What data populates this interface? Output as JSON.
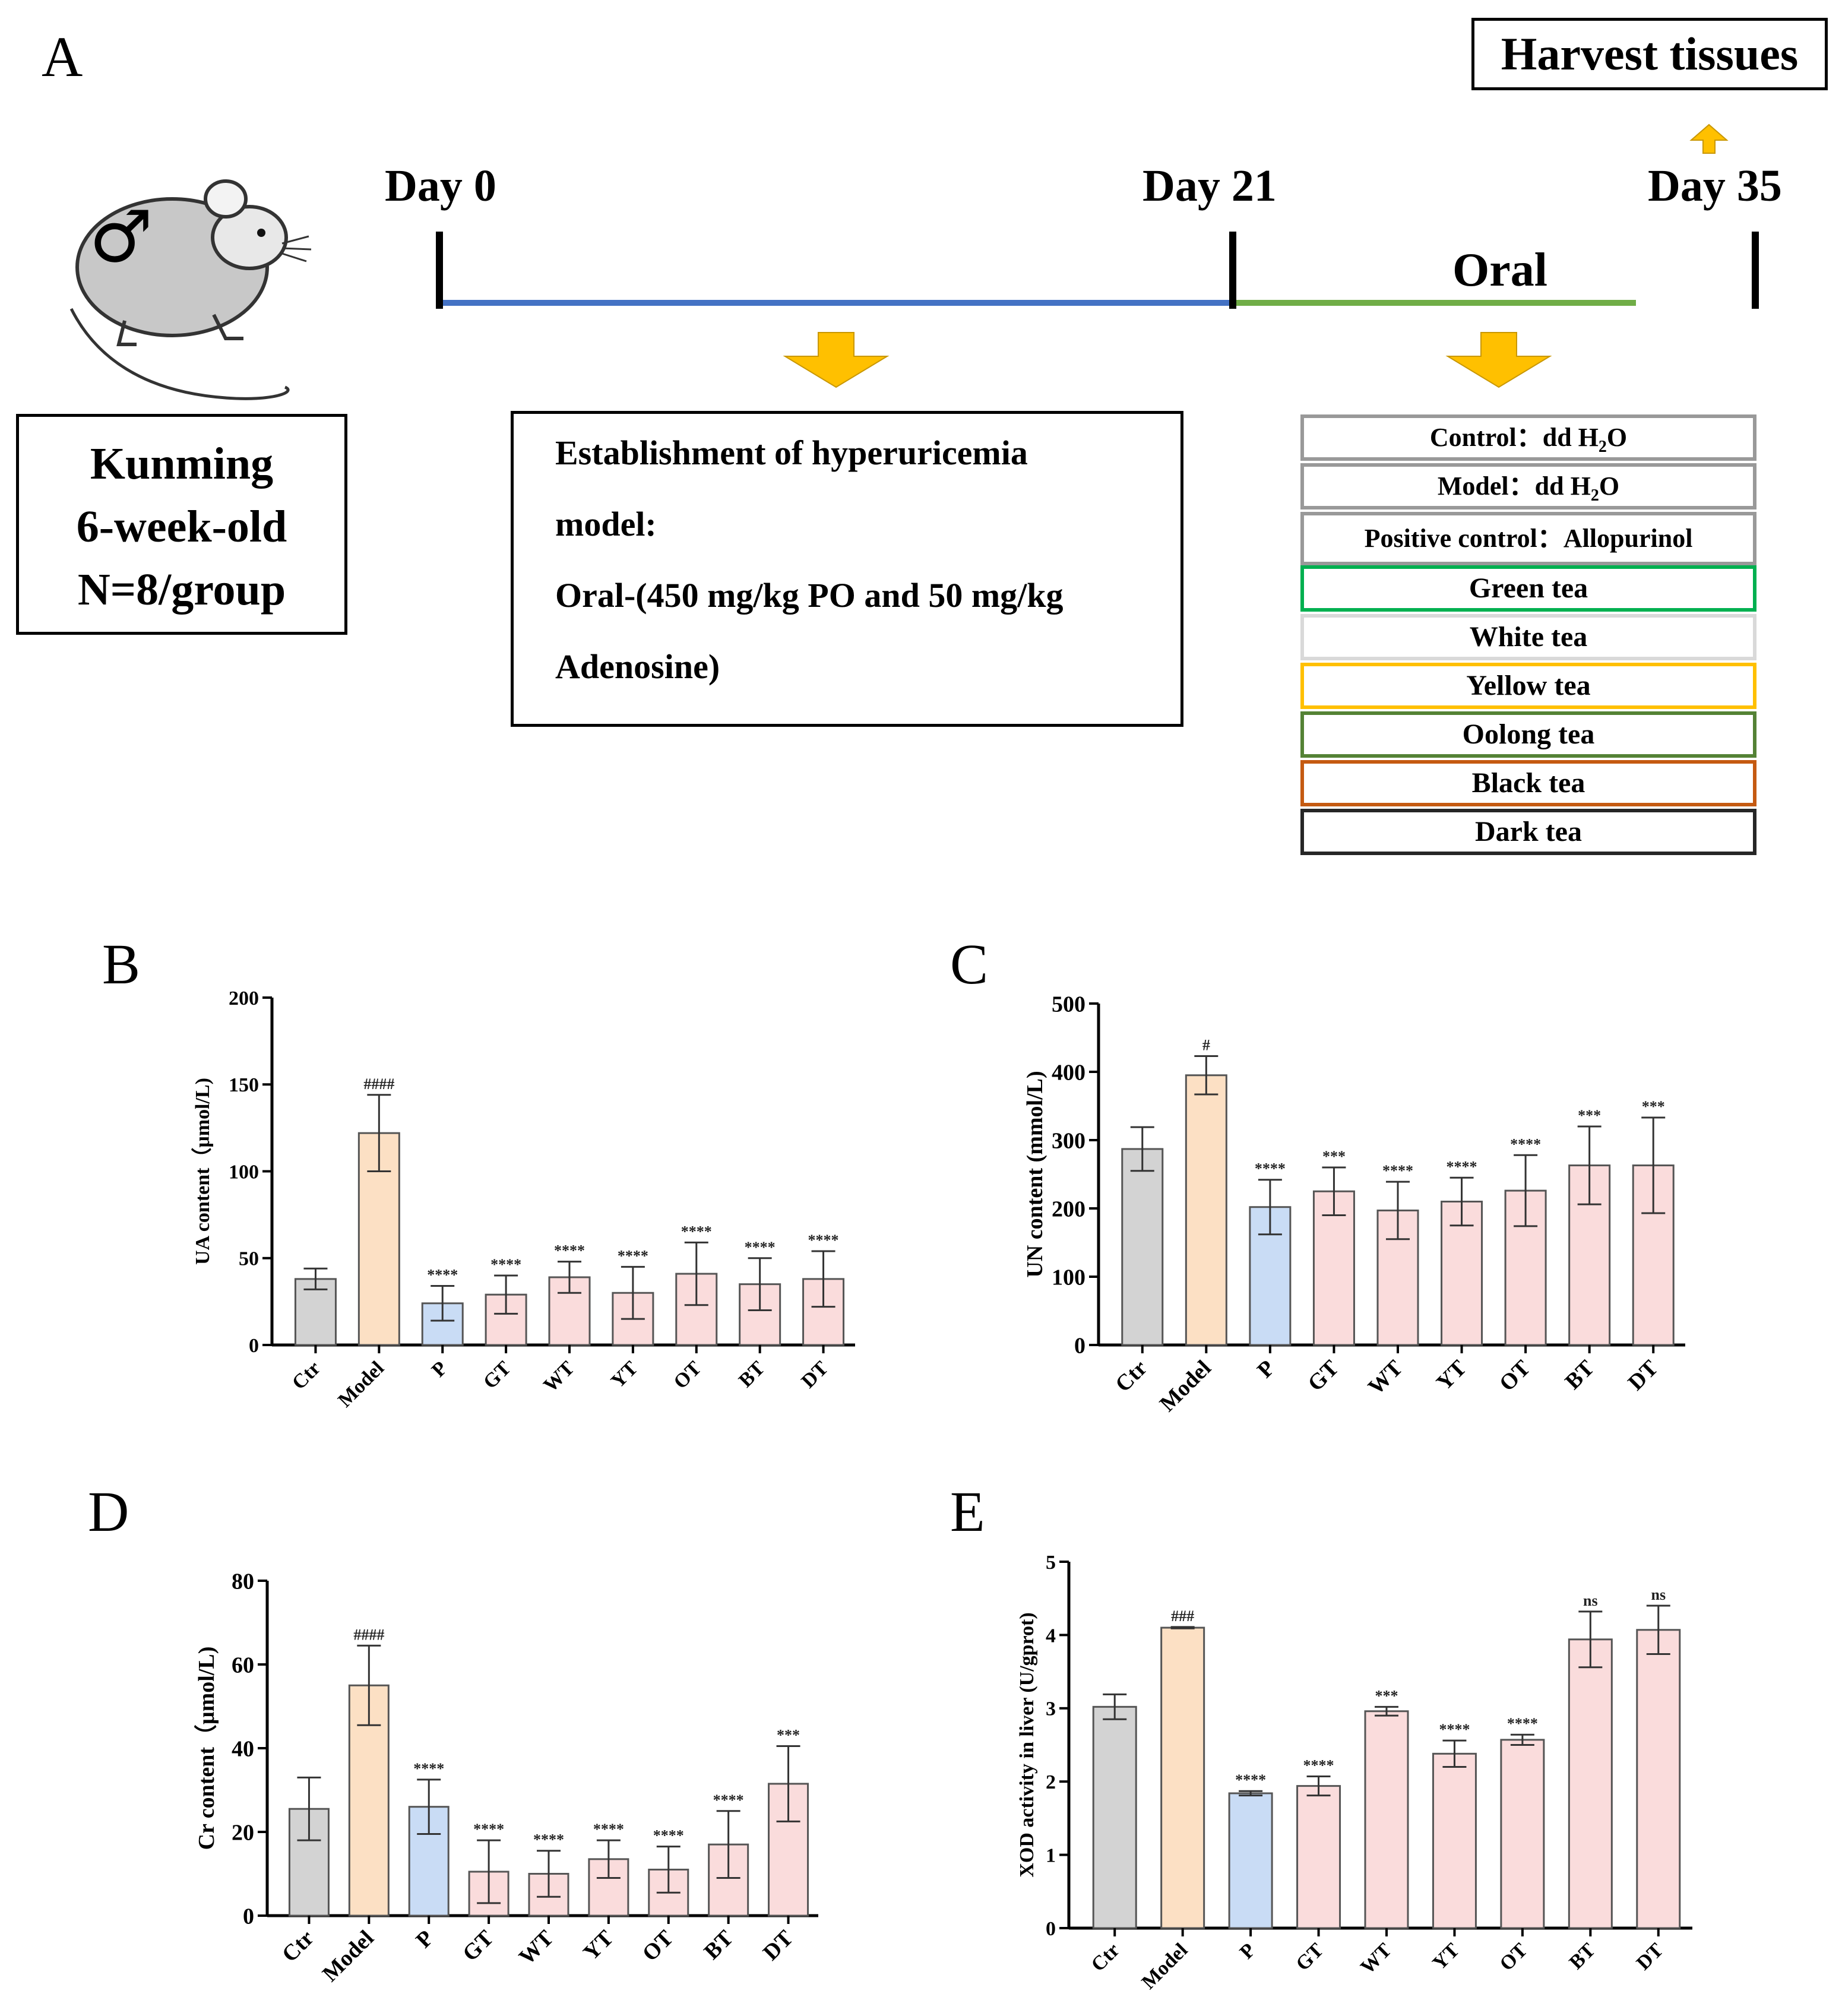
{
  "panel_a": {
    "letter": "A",
    "mouse_symbol": "♂",
    "strain": [
      "Kunming",
      "6-week-old",
      "N=8/group"
    ],
    "timeline": {
      "day0": "Day 0",
      "day21": "Day 21",
      "day35": "Day 35",
      "oral": "Oral",
      "harvest": "Harvest tissues",
      "phase1_color": "#4472C4",
      "phase2_color": "#70AD47",
      "arrow_color": "#FFC000"
    },
    "model_box": {
      "lines": [
        "Establishment of hyperuricemia",
        "model:",
        "Oral-(450 mg/kg PO and 50 mg/kg",
        "Adenosine)"
      ]
    },
    "groups": {
      "control_label": "Control：",
      "control_value": "dd H",
      "control_sub": "2",
      "control_tail": "O",
      "model_label": "Model：",
      "model_value": "dd H",
      "model_sub": "2",
      "model_tail": "O",
      "positive_label": "Positive control：",
      "positive_value": "Allopurinol",
      "teas": [
        {
          "name": "Green tea",
          "color": "#00B050"
        },
        {
          "name": "White tea",
          "color": "#D9D9D9"
        },
        {
          "name": "Yellow tea",
          "color": "#FFC000"
        },
        {
          "name": "Oolong tea",
          "color": "#548235"
        },
        {
          "name": "Black tea",
          "color": "#C55A11"
        },
        {
          "name": "Dark tea",
          "color": "#262626"
        }
      ]
    }
  },
  "chart_data": [
    {
      "panel": "B",
      "type": "bar",
      "ylabel": "UA content（μmol/L)",
      "ylim": [
        0,
        200
      ],
      "yticks": [
        0,
        50,
        100,
        150,
        200
      ],
      "categories": [
        "Ctr",
        "Model",
        "P",
        "GT",
        "WT",
        "YT",
        "OT",
        "BT",
        "DT"
      ],
      "values": [
        38,
        122,
        24,
        29,
        39,
        30,
        41,
        35,
        38
      ],
      "errors": [
        6,
        22,
        10,
        11,
        9,
        15,
        18,
        15,
        16
      ],
      "annotations": [
        "",
        "####",
        "****",
        "****",
        "****",
        "****",
        "****",
        "****",
        "****"
      ]
    },
    {
      "panel": "C",
      "type": "bar",
      "ylabel": "UN content (mmol/L)",
      "ylim": [
        0,
        500
      ],
      "yticks": [
        0,
        100,
        200,
        300,
        400,
        500
      ],
      "categories": [
        "Ctr",
        "Model",
        "P",
        "GT",
        "WT",
        "YT",
        "OT",
        "BT",
        "DT"
      ],
      "values": [
        287,
        395,
        202,
        225,
        197,
        210,
        226,
        263,
        263
      ],
      "errors": [
        32,
        28,
        40,
        35,
        42,
        35,
        52,
        57,
        70
      ],
      "annotations": [
        "",
        "#",
        "****",
        "***",
        "****",
        "****",
        "****",
        "***",
        "***"
      ]
    },
    {
      "panel": "D",
      "type": "bar",
      "ylabel": "Cr content（μmol/L)",
      "ylim": [
        0,
        80
      ],
      "yticks": [
        0,
        20,
        40,
        60,
        80
      ],
      "categories": [
        "Ctr",
        "Model",
        "P",
        "GT",
        "WT",
        "YT",
        "OT",
        "BT",
        "DT"
      ],
      "values": [
        25.5,
        55,
        26,
        10.5,
        10,
        13.5,
        11,
        17,
        31.5
      ],
      "errors": [
        7.5,
        9.5,
        6.5,
        7.5,
        5.5,
        4.5,
        5.5,
        8,
        9
      ],
      "annotations": [
        "",
        "####",
        "****",
        "****",
        "****",
        "****",
        "****",
        "****",
        "***"
      ]
    },
    {
      "panel": "E",
      "type": "bar",
      "ylabel": "XOD activity in liver (U/gprot)",
      "ylim": [
        0,
        5
      ],
      "yticks": [
        0,
        1,
        2,
        3,
        4,
        5
      ],
      "categories": [
        "Ctr",
        "Model",
        "P",
        "GT",
        "WT",
        "YT",
        "OT",
        "BT",
        "DT"
      ],
      "values": [
        3.02,
        4.1,
        1.84,
        1.94,
        2.96,
        2.38,
        2.57,
        3.94,
        4.07
      ],
      "errors": [
        0.17,
        0.01,
        0.03,
        0.13,
        0.06,
        0.18,
        0.07,
        0.38,
        0.33
      ],
      "annotations": [
        "",
        "###",
        "****",
        "****",
        "***",
        "****",
        "****",
        "ns",
        "ns"
      ]
    }
  ],
  "bar_colors": {
    "Ctr": {
      "fill": "#D3D3D3",
      "stroke": "#555555"
    },
    "Model": {
      "fill": "#FCE0C4",
      "stroke": "#555555"
    },
    "P": {
      "fill": "#C9DCF5",
      "stroke": "#555555"
    },
    "tea": {
      "fill": "#FADCDC",
      "stroke": "#555555"
    }
  }
}
